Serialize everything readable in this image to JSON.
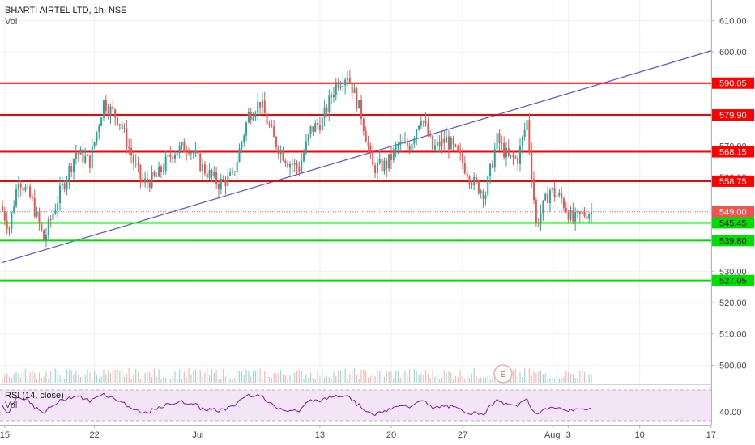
{
  "header": {
    "title": "BHARTI AIRTEL LTD, 1h, NSE",
    "vol_label": "Vol"
  },
  "rsi_pane": {
    "label": "RSI (14, close)",
    "vol_label": "Vol",
    "value_label": "40.00"
  },
  "earnings_marker": "E",
  "colors": {
    "up": "#26a69a",
    "down": "#ef5350",
    "resistance": "#ff0000",
    "support": "#00e000",
    "trendline": "#5b4fd6",
    "rsi": "#7b1fa2",
    "rsi_band": "#f3e5f5",
    "axis_text": "#4a4a4a",
    "grid": "#eef0f3"
  },
  "chart_data": {
    "type": "candlestick",
    "symbol": "BHARTI AIRTEL LTD",
    "interval": "1h",
    "exchange": "NSE",
    "price_axis": {
      "range": [
        492,
        617
      ],
      "ticks": [
        "610.00",
        "600.00",
        "590.00",
        "580.00",
        "570.00",
        "560.00",
        "550.00",
        "540.00",
        "530.00",
        "520.00",
        "510.00",
        "500.00"
      ]
    },
    "last_price": "549.00",
    "time_axis": {
      "ticks": [
        {
          "label": "15",
          "bar": 1
        },
        {
          "label": "22",
          "bar": 40
        },
        {
          "label": "Jul",
          "bar": 85
        },
        {
          "label": "13",
          "bar": 138
        },
        {
          "label": "20",
          "bar": 169
        },
        {
          "label": "27",
          "bar": 200
        },
        {
          "label": "Aug",
          "bar": 239
        },
        {
          "label": "3",
          "bar": 246
        },
        {
          "label": "10",
          "bar": 277
        },
        {
          "label": "17",
          "bar": 308
        }
      ]
    },
    "horizontal_levels": [
      {
        "label": "590.05",
        "value": 590.05,
        "kind": "resistance"
      },
      {
        "label": "579.90",
        "value": 579.9,
        "kind": "resistance"
      },
      {
        "label": "568.15",
        "value": 568.15,
        "kind": "resistance"
      },
      {
        "label": "558.75",
        "value": 558.75,
        "kind": "resistance"
      },
      {
        "label": "545.45",
        "value": 545.45,
        "kind": "support"
      },
      {
        "label": "539.80",
        "value": 539.8,
        "kind": "support"
      },
      {
        "label": "527.05",
        "value": 527.05,
        "kind": "support"
      }
    ],
    "trendline": {
      "from": {
        "bar": 0,
        "price": 532.8
      },
      "to": {
        "bar": 310,
        "price": 600.8
      }
    },
    "anchors": [
      [
        0,
        551
      ],
      [
        4,
        544
      ],
      [
        8,
        560
      ],
      [
        14,
        552
      ],
      [
        19,
        540
      ],
      [
        26,
        555
      ],
      [
        33,
        568
      ],
      [
        39,
        565
      ],
      [
        45,
        584
      ],
      [
        52,
        578
      ],
      [
        58,
        565
      ],
      [
        62,
        558
      ],
      [
        68,
        560
      ],
      [
        75,
        568
      ],
      [
        82,
        570
      ],
      [
        88,
        563
      ],
      [
        95,
        558
      ],
      [
        101,
        560
      ],
      [
        108,
        580
      ],
      [
        113,
        584
      ],
      [
        119,
        572
      ],
      [
        125,
        565
      ],
      [
        130,
        563
      ],
      [
        135,
        575
      ],
      [
        140,
        578
      ],
      [
        146,
        590
      ],
      [
        151,
        593
      ],
      [
        157,
        580
      ],
      [
        162,
        563
      ],
      [
        168,
        564
      ],
      [
        173,
        570
      ],
      [
        178,
        570
      ],
      [
        183,
        580
      ],
      [
        188,
        569
      ],
      [
        194,
        572
      ],
      [
        200,
        566
      ],
      [
        206,
        558
      ],
      [
        211,
        555
      ],
      [
        216,
        572
      ],
      [
        221,
        566
      ],
      [
        225,
        566
      ],
      [
        229,
        578
      ],
      [
        233,
        545
      ],
      [
        239,
        556
      ],
      [
        244,
        553
      ],
      [
        249,
        546
      ],
      [
        253,
        548
      ],
      [
        256,
        549
      ]
    ],
    "rsi": {
      "period": 14,
      "source": "close",
      "band": [
        30,
        70
      ]
    }
  }
}
